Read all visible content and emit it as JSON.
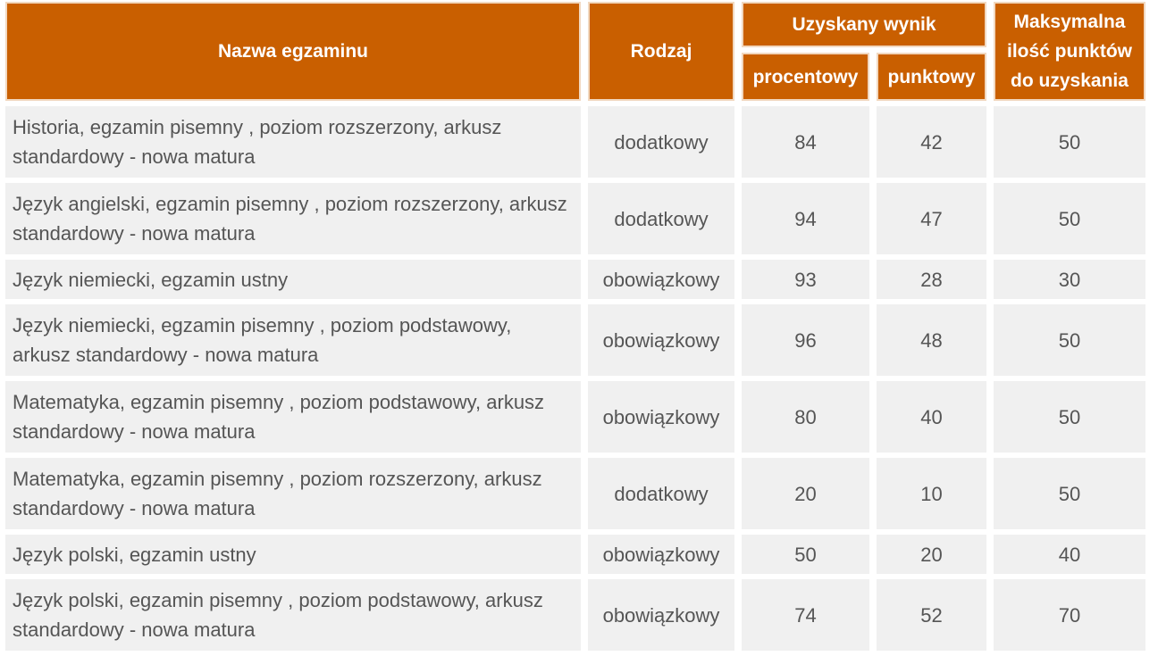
{
  "table": {
    "headers": {
      "name": "Nazwa egzaminu",
      "type": "Rodzaj",
      "score_group": "Uzyskany wynik",
      "percent": "procentowy",
      "points": "punktowy",
      "max": "Maksymalna ilość punktów do uzyskania"
    },
    "rows": [
      {
        "name": "Historia, egzamin pisemny , poziom rozszerzony, arkusz standardowy - nowa matura",
        "type": "dodatkowy",
        "percent": "84",
        "points": "42",
        "max": "50"
      },
      {
        "name": "Język angielski, egzamin pisemny , poziom rozszerzony, arkusz standardowy - nowa matura",
        "type": "dodatkowy",
        "percent": "94",
        "points": "47",
        "max": "50"
      },
      {
        "name": "Język niemiecki, egzamin ustny",
        "type": "obowiązkowy",
        "percent": "93",
        "points": "28",
        "max": "30"
      },
      {
        "name": "Język niemiecki, egzamin pisemny , poziom podstawowy, arkusz standardowy - nowa matura",
        "type": "obowiązkowy",
        "percent": "96",
        "points": "48",
        "max": "50"
      },
      {
        "name": "Matematyka, egzamin pisemny , poziom podstawowy, arkusz standardowy - nowa matura",
        "type": "obowiązkowy",
        "percent": "80",
        "points": "40",
        "max": "50"
      },
      {
        "name": "Matematyka, egzamin pisemny , poziom rozszerzony, arkusz standardowy - nowa matura",
        "type": "dodatkowy",
        "percent": "20",
        "points": "10",
        "max": "50"
      },
      {
        "name": "Język polski, egzamin ustny",
        "type": "obowiązkowy",
        "percent": "50",
        "points": "20",
        "max": "40"
      },
      {
        "name": "Język polski, egzamin pisemny , poziom podstawowy, arkusz standardowy - nowa matura",
        "type": "obowiązkowy",
        "percent": "74",
        "points": "52",
        "max": "70"
      }
    ]
  },
  "colors": {
    "header_bg": "#c95f00",
    "cell_bg": "#f0f0f0",
    "text": "#555555"
  }
}
